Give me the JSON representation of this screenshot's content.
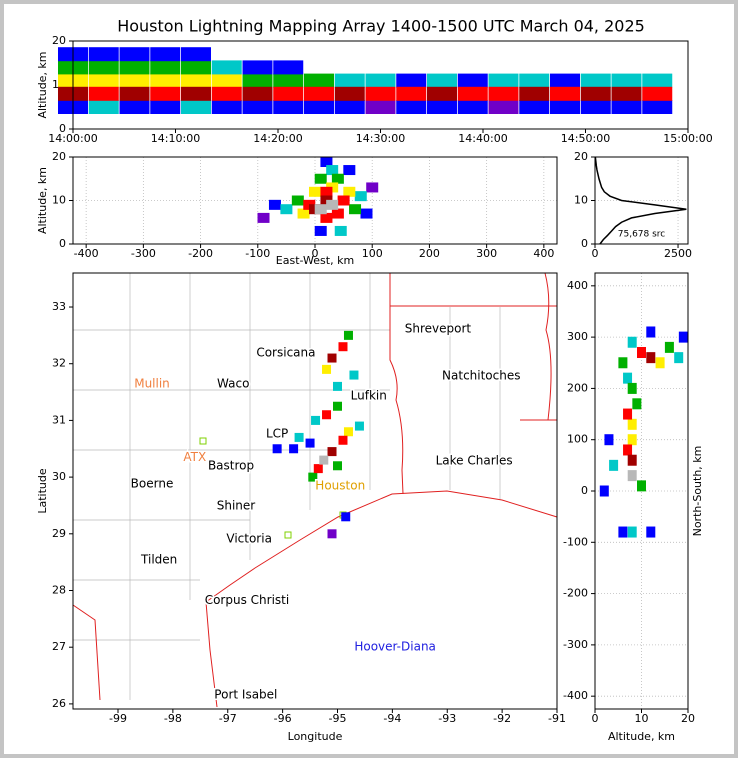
{
  "title": "Houston Lightning Mapping Array 1400-1500 UTC March 04, 2025",
  "colorscale": [
    "#7000c8",
    "#0000ff",
    "#00c8c8",
    "#00b000",
    "#ffee00",
    "#ff0000",
    "#a00000",
    "#b8b8b8"
  ],
  "chart_data": [
    {
      "type": "scatter",
      "ylabel": "Altitude, km",
      "xlim": [
        "14:00:00",
        "15:00:00"
      ],
      "xticks": [
        "14:00:00",
        "14:10:00",
        "14:20:00",
        "14:30:00",
        "14:40:00",
        "14:50:00",
        "15:00:00"
      ],
      "ylim": [
        0,
        20
      ],
      "yticks": [
        0,
        10,
        20
      ],
      "grid": false,
      "points": [
        [
          "14:00:00",
          5,
          1
        ],
        [
          "14:00:00",
          11,
          4
        ],
        [
          "14:00:00",
          14,
          3
        ],
        [
          "14:00:00",
          17,
          1
        ],
        [
          "14:00:00",
          8,
          6
        ],
        [
          "14:03:00",
          5,
          2
        ],
        [
          "14:03:00",
          11,
          4
        ],
        [
          "14:03:00",
          14,
          3
        ],
        [
          "14:03:00",
          17,
          1
        ],
        [
          "14:03:00",
          8,
          5
        ],
        [
          "14:06:00",
          5,
          1
        ],
        [
          "14:06:00",
          11,
          4
        ],
        [
          "14:06:00",
          14,
          3
        ],
        [
          "14:06:00",
          17,
          1
        ],
        [
          "14:06:00",
          8,
          6
        ],
        [
          "14:09:00",
          5,
          1
        ],
        [
          "14:09:00",
          11,
          4
        ],
        [
          "14:09:00",
          14,
          3
        ],
        [
          "14:09:00",
          17,
          1
        ],
        [
          "14:09:00",
          8,
          5
        ],
        [
          "14:12:00",
          5,
          2
        ],
        [
          "14:12:00",
          11,
          4
        ],
        [
          "14:12:00",
          14,
          3
        ],
        [
          "14:12:00",
          17,
          1
        ],
        [
          "14:12:00",
          8,
          6
        ],
        [
          "14:15:00",
          5,
          1
        ],
        [
          "14:15:00",
          11,
          4
        ],
        [
          "14:15:00",
          14,
          2
        ],
        [
          "14:15:00",
          8,
          5
        ],
        [
          "14:18:00",
          5,
          1
        ],
        [
          "14:18:00",
          11,
          3
        ],
        [
          "14:18:00",
          14,
          1
        ],
        [
          "14:18:00",
          8,
          6
        ],
        [
          "14:21:00",
          5,
          1
        ],
        [
          "14:21:00",
          11,
          3
        ],
        [
          "14:21:00",
          14,
          1
        ],
        [
          "14:21:00",
          8,
          5
        ],
        [
          "14:24:00",
          5,
          1
        ],
        [
          "14:24:00",
          11,
          3
        ],
        [
          "14:24:00",
          8,
          5
        ],
        [
          "14:27:00",
          5,
          1
        ],
        [
          "14:27:00",
          11,
          2
        ],
        [
          "14:27:00",
          8,
          6
        ],
        [
          "14:30:00",
          5,
          0
        ],
        [
          "14:30:00",
          11,
          2
        ],
        [
          "14:30:00",
          8,
          5
        ],
        [
          "14:33:00",
          5,
          1
        ],
        [
          "14:33:00",
          11,
          1
        ],
        [
          "14:33:00",
          8,
          5
        ],
        [
          "14:36:00",
          5,
          1
        ],
        [
          "14:36:00",
          11,
          2
        ],
        [
          "14:36:00",
          8,
          6
        ],
        [
          "14:39:00",
          5,
          1
        ],
        [
          "14:39:00",
          11,
          1
        ],
        [
          "14:39:00",
          8,
          5
        ],
        [
          "14:42:00",
          5,
          0
        ],
        [
          "14:42:00",
          11,
          2
        ],
        [
          "14:42:00",
          8,
          5
        ],
        [
          "14:45:00",
          5,
          1
        ],
        [
          "14:45:00",
          11,
          2
        ],
        [
          "14:45:00",
          8,
          6
        ],
        [
          "14:48:00",
          5,
          1
        ],
        [
          "14:48:00",
          11,
          1
        ],
        [
          "14:48:00",
          8,
          5
        ],
        [
          "14:51:00",
          5,
          1
        ],
        [
          "14:51:00",
          11,
          2
        ],
        [
          "14:51:00",
          8,
          6
        ],
        [
          "14:54:00",
          5,
          1
        ],
        [
          "14:54:00",
          11,
          2
        ],
        [
          "14:54:00",
          8,
          6
        ],
        [
          "14:57:00",
          5,
          1
        ],
        [
          "14:57:00",
          11,
          2
        ],
        [
          "14:57:00",
          8,
          5
        ]
      ]
    },
    {
      "type": "scatter",
      "xlabel": "East-West, km",
      "ylabel": "Altitude, km",
      "xlim": [
        -423,
        423
      ],
      "xticks": [
        -400,
        -300,
        -200,
        -100,
        0,
        100,
        200,
        300,
        400
      ],
      "ylim": [
        0,
        20
      ],
      "yticks": [
        0,
        10,
        20
      ],
      "grid": true,
      "points": [
        [
          -90,
          6,
          0
        ],
        [
          100,
          13,
          0
        ],
        [
          90,
          7,
          1
        ],
        [
          20,
          19,
          1
        ],
        [
          60,
          17,
          1
        ],
        [
          -70,
          9,
          1
        ],
        [
          10,
          3,
          1
        ],
        [
          80,
          11,
          2
        ],
        [
          30,
          17,
          2
        ],
        [
          -50,
          8,
          2
        ],
        [
          45,
          3,
          2
        ],
        [
          70,
          8,
          3
        ],
        [
          40,
          15,
          3
        ],
        [
          10,
          15,
          3
        ],
        [
          -30,
          10,
          3
        ],
        [
          30,
          13,
          4
        ],
        [
          0,
          12,
          4
        ],
        [
          60,
          12,
          4
        ],
        [
          -20,
          7,
          4
        ],
        [
          40,
          7,
          5
        ],
        [
          20,
          6,
          5
        ],
        [
          -10,
          9,
          5
        ],
        [
          50,
          10,
          5
        ],
        [
          20,
          12,
          5
        ],
        [
          20,
          10,
          6
        ],
        [
          0,
          8,
          6
        ],
        [
          10,
          8,
          7
        ],
        [
          30,
          9,
          7
        ]
      ]
    },
    {
      "type": "line",
      "text": "75,678 src",
      "xlim": [
        0,
        2800
      ],
      "xticks": [
        0,
        2500
      ],
      "ylim": [
        0,
        20
      ],
      "yticks": [
        0,
        10,
        20
      ],
      "grid": true,
      "color": "#000000",
      "y": [
        0,
        1,
        2,
        3,
        4,
        5,
        6,
        7,
        8,
        9,
        10,
        11,
        12,
        13,
        14,
        15,
        16,
        17,
        18,
        19,
        20
      ],
      "values": [
        150,
        250,
        380,
        500,
        620,
        800,
        1100,
        1800,
        2750,
        1800,
        800,
        450,
        280,
        200,
        160,
        120,
        90,
        60,
        40,
        25,
        10
      ]
    },
    {
      "type": "scatter",
      "xlabel": "Longitude",
      "ylabel": "Latitude",
      "xlim": [
        -99.82,
        -91
      ],
      "xticks": [
        -99,
        -98,
        -97,
        -96,
        -95,
        -94,
        -93,
        -92,
        -91
      ],
      "ylim": [
        25.91,
        33.6
      ],
      "yticks": [
        26,
        27,
        28,
        29,
        30,
        31,
        32,
        33
      ],
      "grid": false,
      "places": [
        {
          "name": "Shreveport",
          "lon": -93.17,
          "lat": 32.61,
          "color": "#000000"
        },
        {
          "name": "Corsicana",
          "lon": -95.94,
          "lat": 32.19,
          "color": "#000000"
        },
        {
          "name": "Mullin",
          "lon": -98.38,
          "lat": 31.64,
          "color": "#f08040"
        },
        {
          "name": "Waco",
          "lon": -96.9,
          "lat": 31.64,
          "color": "#000000"
        },
        {
          "name": "Natchitoches",
          "lon": -92.38,
          "lat": 31.78,
          "color": "#000000"
        },
        {
          "name": "Lufkin",
          "lon": -94.43,
          "lat": 31.43,
          "color": "#000000"
        },
        {
          "name": "LCP",
          "lon": -96.1,
          "lat": 30.76,
          "color": "#000000"
        },
        {
          "name": "ATX",
          "lon": -97.6,
          "lat": 30.35,
          "color": "#f08040"
        },
        {
          "name": "Bastrop",
          "lon": -96.94,
          "lat": 30.2,
          "color": "#000000"
        },
        {
          "name": "Lake Charles",
          "lon": -92.51,
          "lat": 30.28,
          "color": "#000000"
        },
        {
          "name": "Boerne",
          "lon": -98.38,
          "lat": 29.88,
          "color": "#000000"
        },
        {
          "name": "Houston",
          "lon": -94.95,
          "lat": 29.84,
          "color": "#e0a000"
        },
        {
          "name": "Shiner",
          "lon": -96.85,
          "lat": 29.49,
          "color": "#000000"
        },
        {
          "name": "Victoria",
          "lon": -96.61,
          "lat": 28.91,
          "color": "#000000"
        },
        {
          "name": "Tilden",
          "lon": -98.25,
          "lat": 28.54,
          "color": "#000000"
        },
        {
          "name": "Corpus Christi",
          "lon": -96.65,
          "lat": 27.82,
          "color": "#000000"
        },
        {
          "name": "Hoover-Diana",
          "lon": -93.95,
          "lat": 27.0,
          "color": "#2020e0"
        },
        {
          "name": "Port Isabel",
          "lon": -96.67,
          "lat": 26.16,
          "color": "#000000"
        }
      ],
      "points": [
        [
          -95.1,
          29.0,
          0
        ],
        [
          -94.85,
          29.3,
          1
        ],
        [
          -95.8,
          30.5,
          1
        ],
        [
          -96.1,
          30.5,
          1
        ],
        [
          -95.5,
          30.6,
          1
        ],
        [
          -94.7,
          31.8,
          2
        ],
        [
          -95.0,
          31.6,
          2
        ],
        [
          -95.4,
          31.0,
          2
        ],
        [
          -94.6,
          30.9,
          2
        ],
        [
          -95.7,
          30.7,
          2
        ],
        [
          -94.8,
          32.5,
          3
        ],
        [
          -95.0,
          31.25,
          3
        ],
        [
          -95.45,
          30.0,
          3
        ],
        [
          -95.0,
          30.2,
          3
        ],
        [
          -95.2,
          31.9,
          4
        ],
        [
          -94.8,
          30.8,
          4
        ],
        [
          -94.9,
          32.3,
          5
        ],
        [
          -95.2,
          31.1,
          5
        ],
        [
          -94.9,
          30.65,
          5
        ],
        [
          -95.35,
          30.15,
          5
        ],
        [
          -95.1,
          32.1,
          6
        ],
        [
          -95.1,
          30.45,
          6
        ],
        [
          -95.25,
          30.3,
          7
        ]
      ]
    },
    {
      "type": "scatter",
      "xlabel": "Altitude, km",
      "ylabel": "North-South, km",
      "xlim": [
        0,
        20
      ],
      "xticks": [
        0,
        10,
        20
      ],
      "ylim": [
        -425,
        425
      ],
      "yticks": [
        -400,
        -300,
        -200,
        -100,
        0,
        100,
        200,
        300,
        400
      ],
      "grid": true,
      "points": [
        [
          12,
          -80,
          1
        ],
        [
          6,
          -80,
          1
        ],
        [
          8,
          -80,
          2
        ],
        [
          2,
          0,
          1
        ],
        [
          3,
          100,
          1
        ],
        [
          12,
          310,
          1
        ],
        [
          19,
          300,
          1
        ],
        [
          4,
          50,
          2
        ],
        [
          7,
          220,
          2
        ],
        [
          18,
          260,
          2
        ],
        [
          8,
          290,
          2
        ],
        [
          9,
          170,
          3
        ],
        [
          8,
          200,
          3
        ],
        [
          16,
          280,
          3
        ],
        [
          6,
          250,
          3
        ],
        [
          10,
          10,
          3
        ],
        [
          8,
          100,
          4
        ],
        [
          8,
          130,
          4
        ],
        [
          14,
          250,
          4
        ],
        [
          7,
          80,
          5
        ],
        [
          7,
          150,
          5
        ],
        [
          10,
          270,
          5
        ],
        [
          8,
          60,
          6
        ],
        [
          12,
          260,
          6
        ],
        [
          8,
          30,
          7
        ]
      ]
    }
  ]
}
